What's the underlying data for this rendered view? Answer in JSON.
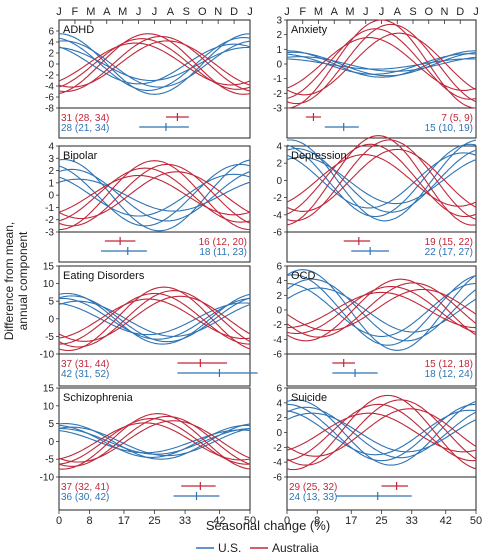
{
  "figure": {
    "ylabel": "Difference from mean,\nannual component",
    "xlabel": "Seasonal change (%)",
    "months": [
      "J",
      "F",
      "M",
      "A",
      "M",
      "J",
      "J",
      "A",
      "S",
      "O",
      "N",
      "D",
      "J"
    ],
    "x_ticks": [
      0,
      8,
      17,
      25,
      33,
      42,
      50
    ],
    "legend": [
      {
        "name": "U.S.",
        "color": "#2e74b5"
      },
      {
        "name": "Australia",
        "color": "#c0283a"
      }
    ]
  },
  "chart_data": [
    {
      "type": "line",
      "title": "ADHD",
      "ylim": [
        -8,
        8
      ],
      "yticks": [
        -8,
        -6,
        -4,
        -2,
        0,
        2,
        4,
        6
      ],
      "series": [
        {
          "name": "U.S.",
          "color": "#2e74b5",
          "curves": [
            {
              "amp": 5.5,
              "peak": 0.0
            },
            {
              "amp": 4.8,
              "peak": 11.6
            },
            {
              "amp": 4.2,
              "peak": 0.3
            },
            {
              "amp": 3.6,
              "peak": 11.0
            },
            {
              "amp": 3.0,
              "peak": 11.8
            }
          ]
        },
        {
          "name": "Australia",
          "color": "#c0283a",
          "curves": [
            {
              "amp": 5.5,
              "peak": 5.6
            },
            {
              "amp": 5.0,
              "peak": 6.4
            },
            {
              "amp": 4.6,
              "peak": 5.2
            },
            {
              "amp": 4.2,
              "peak": 6.8
            },
            {
              "amp": 3.8,
              "peak": 4.8
            }
          ]
        }
      ],
      "estimates": [
        {
          "group": "Australia",
          "text": "31 (28, 34)",
          "est": 31,
          "lo": 28,
          "hi": 34
        },
        {
          "group": "U.S.",
          "text": "28 (21, 34)",
          "est": 28,
          "lo": 21,
          "hi": 34
        }
      ]
    },
    {
      "type": "line",
      "title": "Anxiety",
      "ylim": [
        -3,
        3
      ],
      "yticks": [
        -3,
        -2,
        -1,
        0,
        1,
        2,
        3
      ],
      "series": [
        {
          "name": "U.S.",
          "color": "#2e74b5",
          "curves": [
            {
              "amp": 0.8,
              "peak": 0.4
            },
            {
              "amp": 0.7,
              "peak": 11.5
            },
            {
              "amp": 0.5,
              "peak": 0.8
            },
            {
              "amp": 0.9,
              "peak": 0.0
            },
            {
              "amp": 0.35,
              "peak": 11.6
            }
          ]
        },
        {
          "name": "Australia",
          "color": "#c0283a",
          "curves": [
            {
              "amp": 3.0,
              "peak": 6.0
            },
            {
              "amp": 2.7,
              "peak": 6.6
            },
            {
              "amp": 2.4,
              "peak": 5.6
            },
            {
              "amp": 2.1,
              "peak": 7.1
            },
            {
              "amp": 1.8,
              "peak": 5.2
            }
          ]
        }
      ],
      "estimates": [
        {
          "group": "Australia",
          "text": "7 (5, 9)",
          "est": 7,
          "lo": 5,
          "hi": 9
        },
        {
          "group": "U.S.",
          "text": "15 (10, 19)",
          "est": 15,
          "lo": 10,
          "hi": 19
        }
      ]
    },
    {
      "type": "line",
      "title": "Bipolar",
      "ylim": [
        -3,
        4
      ],
      "yticks": [
        -3,
        -2,
        -1,
        0,
        1,
        2,
        3,
        4
      ],
      "series": [
        {
          "name": "U.S.",
          "color": "#2e74b5",
          "curves": [
            {
              "amp": 2.9,
              "peak": 0.3
            },
            {
              "amp": 2.5,
              "peak": 11.4
            },
            {
              "amp": 2.1,
              "peak": 0.8
            },
            {
              "amp": 1.7,
              "peak": 11.0
            },
            {
              "amp": 1.3,
              "peak": 1.2
            }
          ]
        },
        {
          "name": "Australia",
          "color": "#c0283a",
          "curves": [
            {
              "amp": 2.8,
              "peak": 6.0
            },
            {
              "amp": 2.5,
              "peak": 6.8
            },
            {
              "amp": 2.2,
              "peak": 5.4
            },
            {
              "amp": 1.9,
              "peak": 7.4
            },
            {
              "amp": 1.6,
              "peak": 5.0
            }
          ]
        }
      ],
      "estimates": [
        {
          "group": "Australia",
          "text": "16 (12, 20)",
          "est": 16,
          "lo": 12,
          "hi": 20
        },
        {
          "group": "U.S.",
          "text": "18 (11, 23)",
          "est": 18,
          "lo": 11,
          "hi": 23
        }
      ]
    },
    {
      "type": "line",
      "title": "Depression",
      "ylim": [
        -6,
        4
      ],
      "yticks": [
        -6,
        -4,
        -2,
        0,
        2,
        4
      ],
      "series": [
        {
          "name": "U.S.",
          "color": "#2e74b5",
          "curves": [
            {
              "amp": 4.7,
              "peak": 0.2
            },
            {
              "amp": 4.2,
              "peak": 11.6
            },
            {
              "amp": 3.7,
              "peak": 0.6
            },
            {
              "amp": 3.2,
              "peak": 11.2
            },
            {
              "amp": 2.7,
              "peak": 0.9
            }
          ]
        },
        {
          "name": "Australia",
          "color": "#c0283a",
          "curves": [
            {
              "amp": 5.2,
              "peak": 5.8
            },
            {
              "amp": 4.7,
              "peak": 6.5
            },
            {
              "amp": 4.2,
              "peak": 5.3
            },
            {
              "amp": 3.6,
              "peak": 7.0
            },
            {
              "amp": 3.0,
              "peak": 4.9
            }
          ]
        }
      ],
      "estimates": [
        {
          "group": "Australia",
          "text": "19 (15, 22)",
          "est": 19,
          "lo": 15,
          "hi": 22
        },
        {
          "group": "U.S.",
          "text": "22 (17, 27)",
          "est": 22,
          "lo": 17,
          "hi": 27
        }
      ]
    },
    {
      "type": "line",
      "title": "Eating Disorders",
      "ylim": [
        -10,
        15
      ],
      "yticks": [
        -10,
        -5,
        0,
        5,
        10,
        15
      ],
      "series": [
        {
          "name": "U.S.",
          "color": "#2e74b5",
          "curves": [
            {
              "amp": 6.5,
              "peak": 0.8
            },
            {
              "amp": 5.8,
              "peak": 0.2
            },
            {
              "amp": 5.0,
              "peak": 1.2
            },
            {
              "amp": 7.2,
              "peak": 0.5
            },
            {
              "amp": 4.5,
              "peak": 11.6
            }
          ]
        },
        {
          "name": "Australia",
          "color": "#c0283a",
          "curves": [
            {
              "amp": 9.0,
              "peak": 6.6
            },
            {
              "amp": 8.0,
              "peak": 7.2
            },
            {
              "amp": 7.2,
              "peak": 6.0
            },
            {
              "amp": 6.4,
              "peak": 7.6
            },
            {
              "amp": 5.6,
              "peak": 5.6
            }
          ]
        }
      ],
      "estimates": [
        {
          "group": "Australia",
          "text": "37 (31, 44)",
          "est": 37,
          "lo": 31,
          "hi": 44
        },
        {
          "group": "U.S.",
          "text": "42 (31, 52)",
          "est": 42,
          "lo": 31,
          "hi": 52
        }
      ]
    },
    {
      "type": "line",
      "title": "OCD",
      "ylim": [
        -6,
        6
      ],
      "yticks": [
        -6,
        -4,
        -2,
        0,
        2,
        4,
        6
      ],
      "series": [
        {
          "name": "U.S.",
          "color": "#2e74b5",
          "curves": [
            {
              "amp": 5.5,
              "peak": 1.0
            },
            {
              "amp": 4.8,
              "peak": 0.4
            },
            {
              "amp": 4.2,
              "peak": 1.6
            },
            {
              "amp": 3.6,
              "peak": 0.0
            },
            {
              "amp": 3.0,
              "peak": 2.0
            }
          ]
        },
        {
          "name": "Australia",
          "color": "#c0283a",
          "curves": [
            {
              "amp": 4.2,
              "peak": 7.2
            },
            {
              "amp": 3.7,
              "peak": 8.0
            },
            {
              "amp": 3.2,
              "peak": 6.6
            },
            {
              "amp": 2.8,
              "peak": 8.6
            },
            {
              "amp": 2.4,
              "peak": 6.0
            }
          ]
        }
      ],
      "estimates": [
        {
          "group": "Australia",
          "text": "15 (12, 18)",
          "est": 15,
          "lo": 12,
          "hi": 18
        },
        {
          "group": "U.S.",
          "text": "18 (12, 24)",
          "est": 18,
          "lo": 12,
          "hi": 24
        }
      ]
    },
    {
      "type": "line",
      "title": "Schizophrenia",
      "ylim": [
        -10,
        15
      ],
      "yticks": [
        -10,
        -5,
        0,
        5,
        10,
        15
      ],
      "series": [
        {
          "name": "U.S.",
          "color": "#2e74b5",
          "curves": [
            {
              "amp": 5.0,
              "peak": 0.4
            },
            {
              "amp": 4.5,
              "peak": 11.8
            },
            {
              "amp": 4.0,
              "peak": 0.8
            },
            {
              "amp": 3.6,
              "peak": 0.1
            },
            {
              "amp": 3.2,
              "peak": 11.4
            }
          ]
        },
        {
          "name": "Australia",
          "color": "#c0283a",
          "curves": [
            {
              "amp": 7.8,
              "peak": 6.2
            },
            {
              "amp": 7.0,
              "peak": 6.8
            },
            {
              "amp": 6.4,
              "peak": 5.8
            },
            {
              "amp": 5.8,
              "peak": 7.2
            },
            {
              "amp": 5.2,
              "peak": 5.4
            }
          ]
        }
      ],
      "estimates": [
        {
          "group": "Australia",
          "text": "37 (32, 41)",
          "est": 37,
          "lo": 32,
          "hi": 41
        },
        {
          "group": "U.S.",
          "text": "36 (30, 42)",
          "est": 36,
          "lo": 30,
          "hi": 42
        }
      ]
    },
    {
      "type": "line",
      "title": "Suicide",
      "ylim": [
        -6,
        6
      ],
      "yticks": [
        -6,
        -4,
        -2,
        0,
        2,
        4,
        6
      ],
      "series": [
        {
          "name": "U.S.",
          "color": "#2e74b5",
          "curves": [
            {
              "amp": 4.4,
              "peak": 0.6
            },
            {
              "amp": 3.8,
              "peak": 0.0
            },
            {
              "amp": 3.4,
              "peak": 1.2
            },
            {
              "amp": 3.0,
              "peak": 11.6
            },
            {
              "amp": 2.6,
              "peak": 1.6
            }
          ]
        },
        {
          "name": "Australia",
          "color": "#c0283a",
          "curves": [
            {
              "amp": 5.0,
              "peak": 6.4
            },
            {
              "amp": 4.4,
              "peak": 7.2
            },
            {
              "amp": 3.8,
              "peak": 5.8
            },
            {
              "amp": 3.2,
              "peak": 7.8
            },
            {
              "amp": 2.6,
              "peak": 5.2
            }
          ]
        }
      ],
      "estimates": [
        {
          "group": "Australia",
          "text": "29 (25, 32)",
          "est": 29,
          "lo": 25,
          "hi": 32
        },
        {
          "group": "U.S.",
          "text": "24 (13, 33)",
          "est": 24,
          "lo": 13,
          "hi": 33
        }
      ]
    }
  ]
}
